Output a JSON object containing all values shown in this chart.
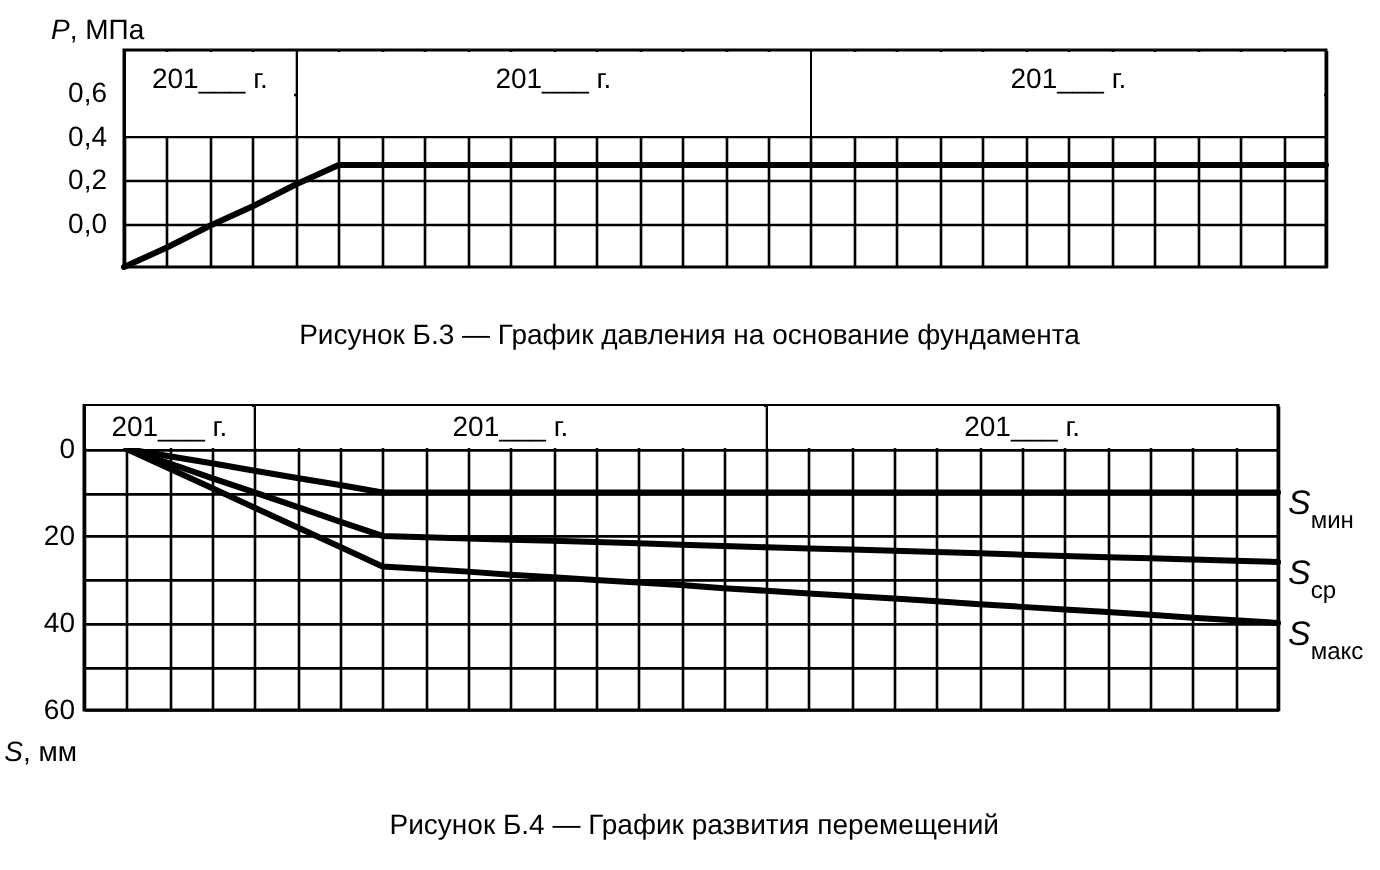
{
  "chart_data": [
    {
      "type": "line",
      "title": "Рисунок Б.3 — График давления на основание фундамента",
      "ylabel": "P, МПа",
      "categories": [
        null,
        null,
        null,
        null,
        null,
        null,
        null,
        null,
        null,
        null,
        null,
        null,
        null,
        null,
        null,
        null,
        null,
        null,
        null,
        null,
        null,
        null,
        null,
        null,
        null,
        null,
        null,
        null,
        null
      ],
      "values": [
        -0.2,
        -0.11,
        -0.01,
        0.08,
        0.18,
        0.27,
        0.27,
        0.27,
        0.27,
        0.27,
        0.27,
        0.27,
        0.27,
        0.27,
        0.27,
        0.27,
        0.27,
        0.27,
        0.27,
        0.27,
        0.27,
        0.27,
        0.27,
        0.27,
        0.27,
        0.27,
        0.27,
        0.27,
        0.27
      ],
      "color": "#000000",
      "ylim": [
        -0.2,
        0.8
      ],
      "yticks": [
        {
          "value": 0,
          "label": "0,0"
        },
        {
          "value": 0.2,
          "label": "0,2"
        },
        {
          "value": 0.4,
          "label": "0,4"
        },
        {
          "value": 0.6,
          "label": "0,6"
        }
      ],
      "grid": true,
      "annotations": [
        "201___ г.",
        "201___ г.",
        "201___ г."
      ]
    },
    {
      "type": "line",
      "title": "Рисунок Б.4 — График развития перемещений",
      "ylabel": "S, мм",
      "categories": [
        null,
        null,
        null,
        null,
        null,
        null,
        null,
        null,
        null,
        null,
        null,
        null,
        null,
        null,
        null,
        null,
        null,
        null,
        null,
        null,
        null,
        null,
        null,
        null,
        null,
        null,
        null,
        null,
        null
      ],
      "series": [
        {
          "name": "S$_{мин}$",
          "color": "#000000",
          "values": [
            null,
            0,
            1.7,
            3.3,
            5,
            6.7,
            8.3,
            10,
            10,
            10,
            10,
            10,
            10,
            10,
            10,
            10,
            10,
            10,
            10,
            10,
            10,
            10,
            10,
            10,
            10,
            10,
            10,
            10,
            10
          ]
        },
        {
          "name": "S$_{ср}$",
          "color": "#000000",
          "values": [
            null,
            0,
            3.3,
            6.7,
            10,
            13.3,
            16.7,
            20,
            20.3,
            20.6,
            20.9,
            21.1,
            21.4,
            21.7,
            22,
            22.3,
            22.6,
            22.9,
            23.1,
            23.4,
            23.7,
            24,
            24.3,
            24.6,
            24.9,
            25.1,
            25.4,
            25.7,
            26
          ]
        },
        {
          "name": "S$_{макс}$",
          "color": "#000000",
          "values": [
            null,
            0,
            4.5,
            9,
            13.5,
            18,
            22.5,
            27,
            27.6,
            28.2,
            28.9,
            29.5,
            30.1,
            30.7,
            31.3,
            32,
            32.6,
            33.2,
            33.8,
            34.4,
            35,
            35.7,
            36.3,
            36.9,
            37.5,
            38.1,
            38.8,
            39.4,
            40
          ]
        }
      ],
      "ylim": [
        60,
        -10
      ],
      "yticks": [
        0,
        {
          "value": 10,
          "label": null
        },
        20,
        {
          "value": 30,
          "label": null
        },
        40,
        {
          "value": 50,
          "label": null
        },
        60
      ],
      "grid": true,
      "annotations": [
        "201___ г.",
        "201___ г.",
        "201___ г."
      ]
    }
  ]
}
